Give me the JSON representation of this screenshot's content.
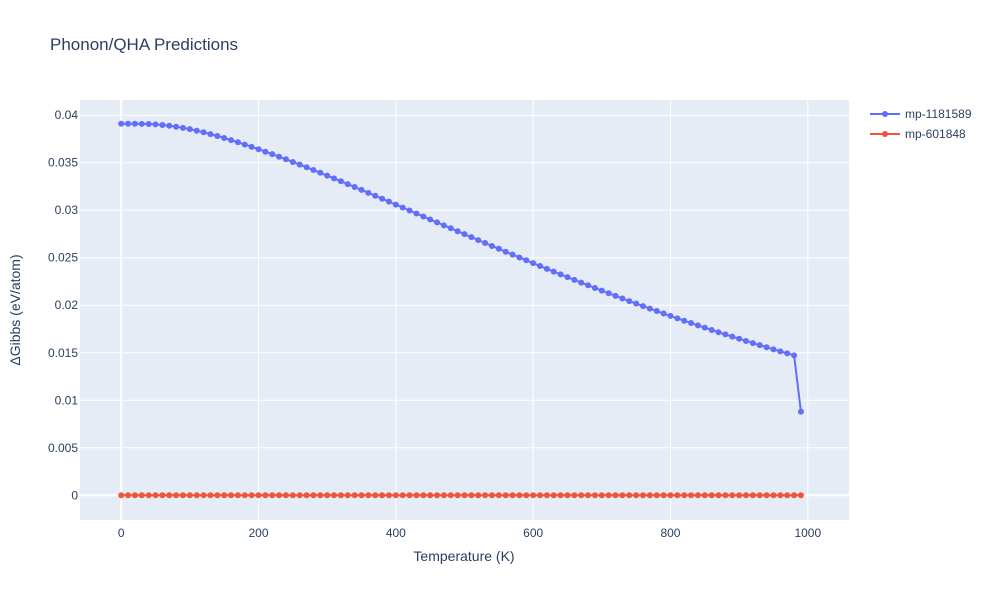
{
  "chart_data": {
    "type": "line",
    "title": "Phonon/QHA Predictions",
    "xlabel": "Temperature (K)",
    "ylabel": "ΔGibbs (eV/atom)",
    "xlim": [
      -60,
      1060
    ],
    "ylim": [
      -0.0026,
      0.0416
    ],
    "xticks": [
      0,
      200,
      400,
      600,
      800,
      1000
    ],
    "xtick_labels": [
      "0",
      "200",
      "400",
      "600",
      "800",
      "1000"
    ],
    "yticks": [
      0,
      0.005,
      0.01,
      0.015,
      0.02,
      0.025,
      0.03,
      0.035,
      0.04
    ],
    "ytick_labels": [
      "0",
      "0.005",
      "0.01",
      "0.015",
      "0.02",
      "0.025",
      "0.03",
      "0.035",
      "0.04"
    ],
    "grid": true,
    "legend_position": "top-right",
    "x": [
      0,
      10,
      20,
      30,
      40,
      50,
      60,
      70,
      80,
      90,
      100,
      110,
      120,
      130,
      140,
      150,
      160,
      170,
      180,
      190,
      200,
      210,
      220,
      230,
      240,
      250,
      260,
      270,
      280,
      290,
      300,
      310,
      320,
      330,
      340,
      350,
      360,
      370,
      380,
      390,
      400,
      410,
      420,
      430,
      440,
      450,
      460,
      470,
      480,
      490,
      500,
      510,
      520,
      530,
      540,
      550,
      560,
      570,
      580,
      590,
      600,
      610,
      620,
      630,
      640,
      650,
      660,
      670,
      680,
      690,
      700,
      710,
      720,
      730,
      740,
      750,
      760,
      770,
      780,
      790,
      800,
      810,
      820,
      830,
      840,
      850,
      860,
      870,
      880,
      890,
      900,
      910,
      920,
      930,
      940,
      950,
      960,
      970,
      980,
      990
    ],
    "series": [
      {
        "name": "mp-1181589",
        "color": "#636efa",
        "values": [
          0.0391,
          0.0391,
          0.0391,
          0.03909,
          0.03907,
          0.03903,
          0.03897,
          0.03889,
          0.03879,
          0.03867,
          0.03853,
          0.03837,
          0.0382,
          0.03801,
          0.03781,
          0.0376,
          0.03738,
          0.03715,
          0.03691,
          0.03667,
          0.03642,
          0.03616,
          0.0359,
          0.03563,
          0.03536,
          0.03508,
          0.0348,
          0.03452,
          0.03423,
          0.03394,
          0.03364,
          0.03335,
          0.03305,
          0.03275,
          0.03244,
          0.03214,
          0.03183,
          0.03152,
          0.03121,
          0.0309,
          0.03059,
          0.03028,
          0.02997,
          0.02966,
          0.02934,
          0.02903,
          0.02872,
          0.02841,
          0.0281,
          0.02779,
          0.02748,
          0.02717,
          0.02686,
          0.02655,
          0.02624,
          0.02594,
          0.02563,
          0.02533,
          0.02503,
          0.02473,
          0.02443,
          0.02413,
          0.02383,
          0.02354,
          0.02325,
          0.02296,
          0.02267,
          0.02238,
          0.0221,
          0.02182,
          0.02154,
          0.02126,
          0.02099,
          0.02071,
          0.02044,
          0.02018,
          0.01991,
          0.01965,
          0.01939,
          0.01913,
          0.01888,
          0.01862,
          0.01837,
          0.01813,
          0.01788,
          0.01764,
          0.0174,
          0.01716,
          0.01693,
          0.0167,
          0.01647,
          0.01624,
          0.01602,
          0.0158,
          0.01558,
          0.01536,
          0.01515,
          0.01494,
          0.01473,
          0.0088
        ]
      },
      {
        "name": "mp-601848",
        "color": "#ef553b",
        "values": [
          0,
          0,
          0,
          0,
          0,
          0,
          0,
          0,
          0,
          0,
          0,
          0,
          0,
          0,
          0,
          0,
          0,
          0,
          0,
          0,
          0,
          0,
          0,
          0,
          0,
          0,
          0,
          0,
          0,
          0,
          0,
          0,
          0,
          0,
          0,
          0,
          0,
          0,
          0,
          0,
          0,
          0,
          0,
          0,
          0,
          0,
          0,
          0,
          0,
          0,
          0,
          0,
          0,
          0,
          0,
          0,
          0,
          0,
          0,
          0,
          0,
          0,
          0,
          0,
          0,
          0,
          0,
          0,
          0,
          0,
          0,
          0,
          0,
          0,
          0,
          0,
          0,
          0,
          0,
          0,
          0,
          0,
          0,
          0,
          0,
          0,
          0,
          0,
          0,
          0,
          0,
          0,
          0,
          0,
          0,
          0,
          0,
          0,
          0,
          0
        ]
      }
    ]
  }
}
